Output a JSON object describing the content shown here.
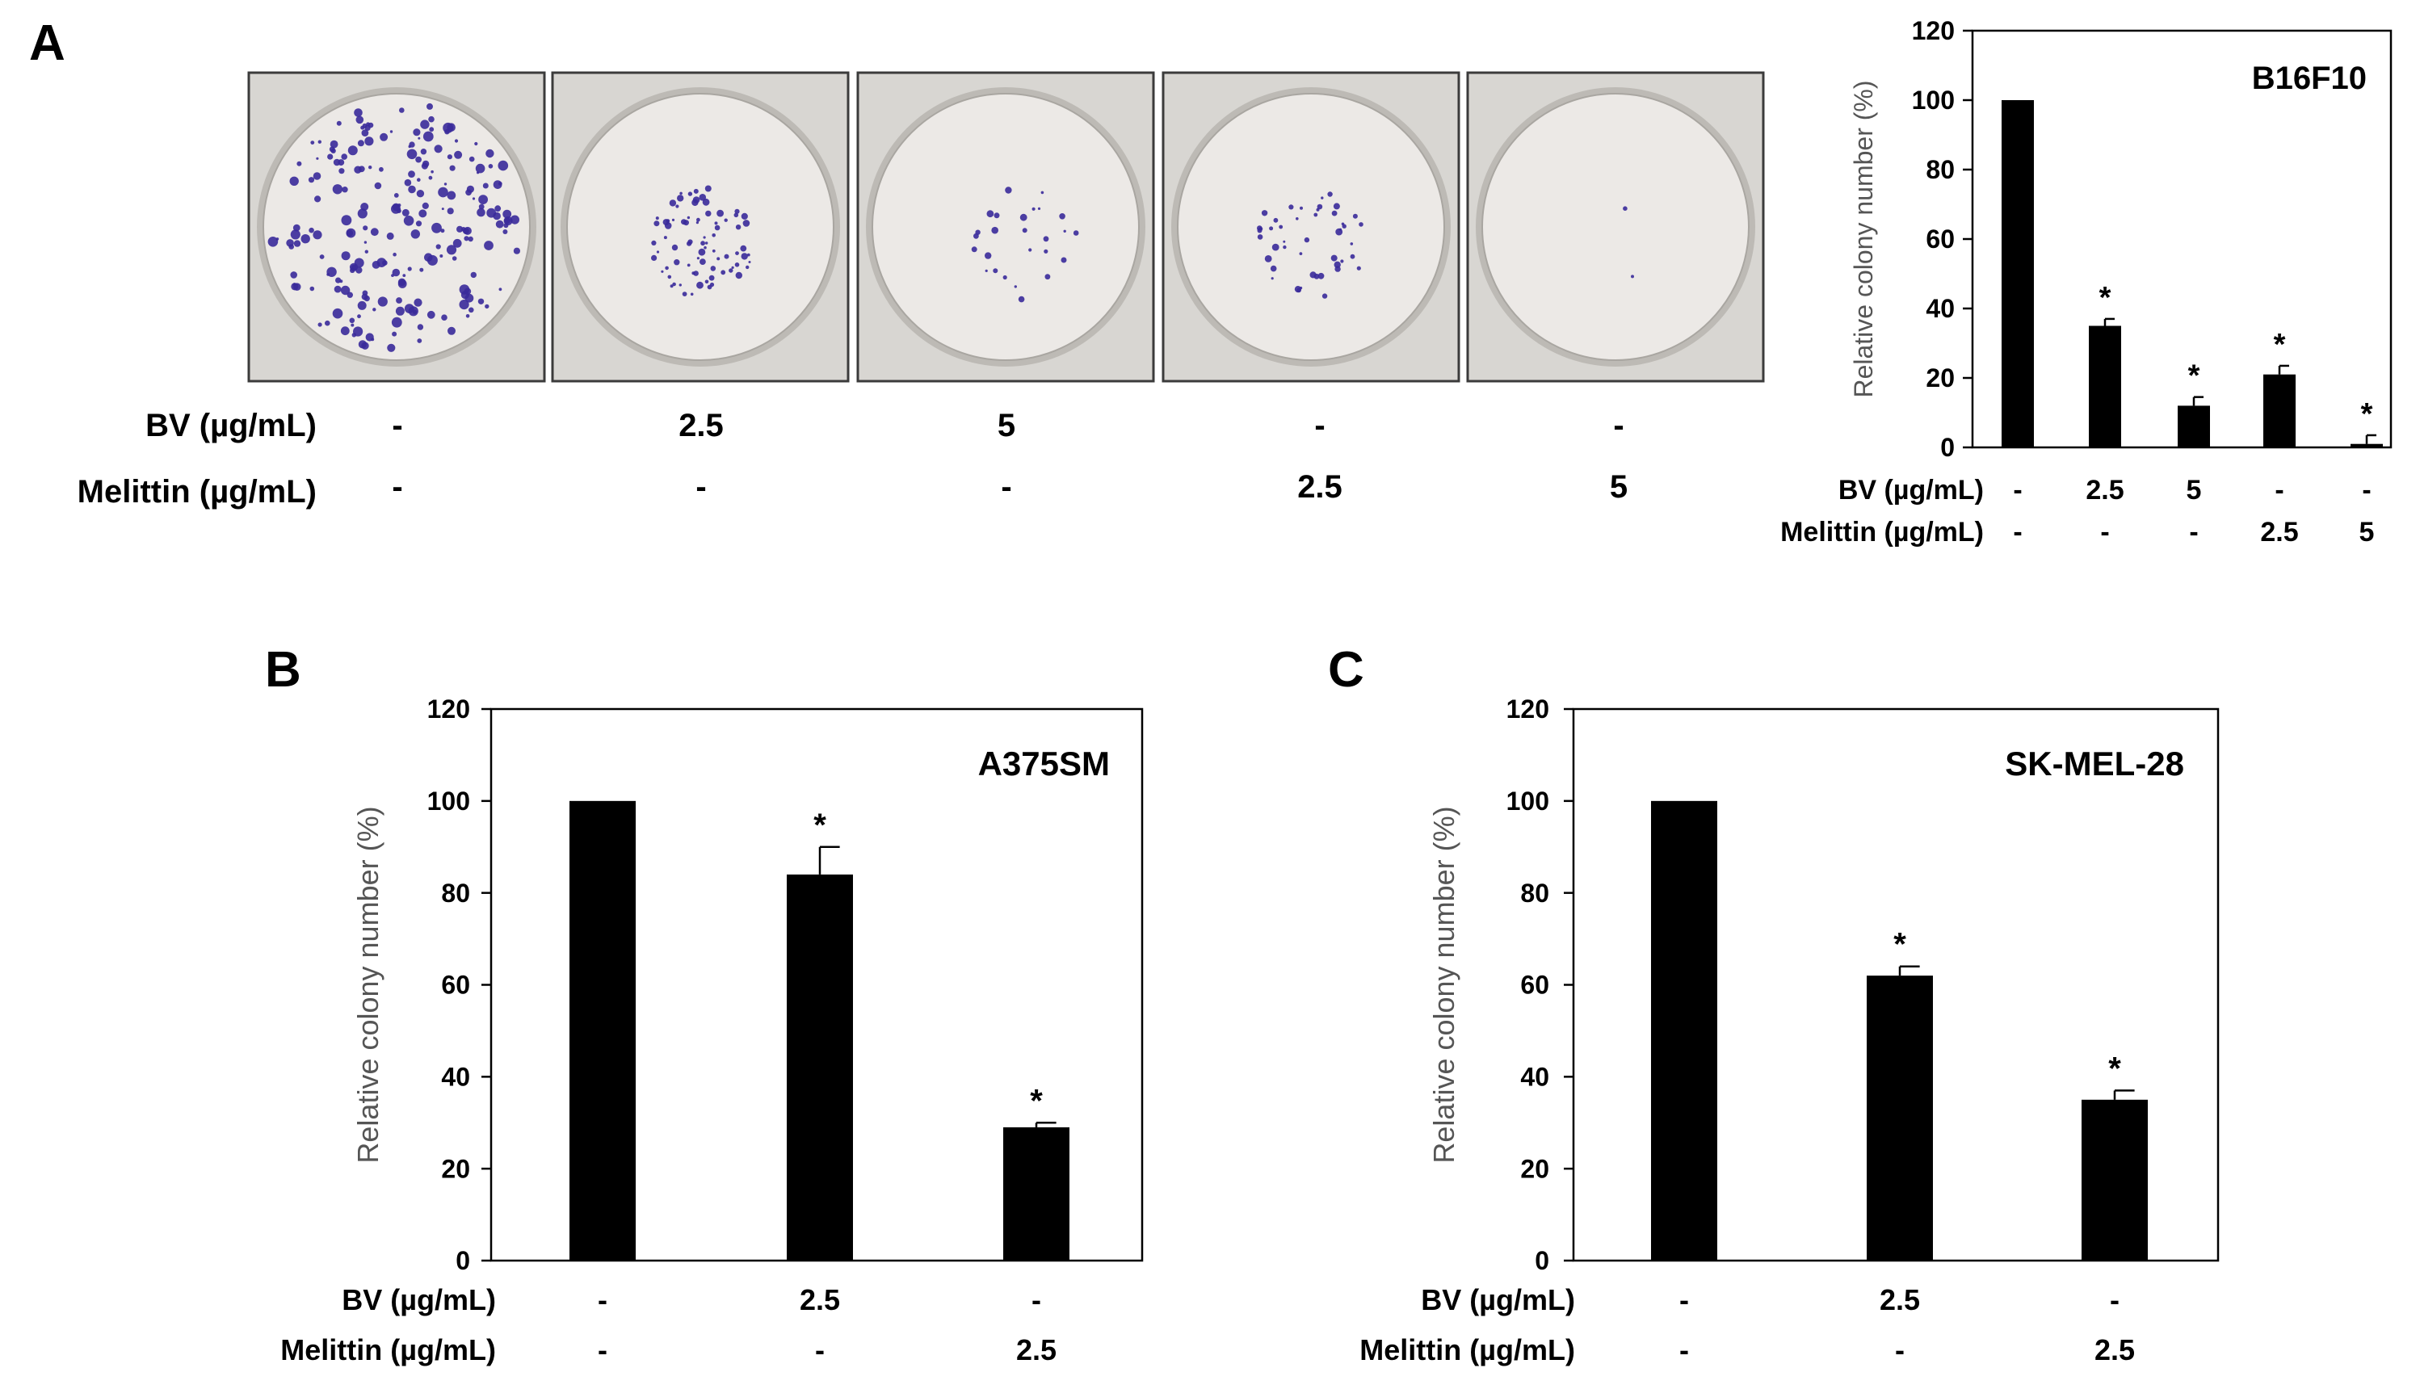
{
  "panels": {
    "A": {
      "letter": "A",
      "row_labels": [
        "BV (µg/mL)",
        "Melittin (µg/mL)"
      ],
      "plate_conditions": [
        {
          "bv": "-",
          "melittin": "-"
        },
        {
          "bv": "2.5",
          "melittin": "-"
        },
        {
          "bv": "5",
          "melittin": "-"
        },
        {
          "bv": "-",
          "melittin": "2.5"
        },
        {
          "bv": "-",
          "melittin": "5"
        }
      ],
      "plate_colony_density": [
        1.0,
        0.36,
        0.12,
        0.21,
        0.01
      ],
      "colors": {
        "colony": "#3a2a9a",
        "plate_bg": "#d8d6d2",
        "well_bg": "#ece9e6",
        "frame": "#3b3b3b"
      }
    },
    "B": {
      "letter": "B"
    },
    "C": {
      "letter": "C"
    }
  },
  "chart_data": [
    {
      "id": "A",
      "type": "bar",
      "inset_label": "B16F10",
      "ylabel": "Relative colony number (%)",
      "ylim": [
        0,
        120
      ],
      "yticks": [
        0,
        20,
        40,
        60,
        80,
        100,
        120
      ],
      "condition_rows": [
        {
          "label": "BV (µg/mL)",
          "values": [
            "-",
            "2.5",
            "5",
            "-",
            "-"
          ]
        },
        {
          "label": "Melittin (µg/mL)",
          "values": [
            "-",
            "-",
            "-",
            "2.5",
            "5"
          ]
        }
      ],
      "values": [
        100,
        35,
        12,
        21,
        1
      ],
      "errors": [
        0,
        2,
        2.5,
        2.5,
        2.5
      ],
      "significance": [
        "",
        "*",
        "*",
        "*",
        "*"
      ],
      "bar_color": "#000000"
    },
    {
      "id": "B",
      "type": "bar",
      "inset_label": "A375SM",
      "ylabel": "Relative colony number (%)",
      "ylim": [
        0,
        120
      ],
      "yticks": [
        0,
        20,
        40,
        60,
        80,
        100,
        120
      ],
      "condition_rows": [
        {
          "label": "BV (µg/mL)",
          "values": [
            "-",
            "2.5",
            "-"
          ]
        },
        {
          "label": "Melittin (µg/mL)",
          "values": [
            "-",
            "-",
            "2.5"
          ]
        }
      ],
      "values": [
        100,
        84,
        29
      ],
      "errors": [
        0,
        6,
        1
      ],
      "significance": [
        "",
        "*",
        "*"
      ],
      "bar_color": "#000000"
    },
    {
      "id": "C",
      "type": "bar",
      "inset_label": "SK-MEL-28",
      "ylabel": "Relative colony number (%)",
      "ylim": [
        0,
        120
      ],
      "yticks": [
        0,
        20,
        40,
        60,
        80,
        100,
        120
      ],
      "condition_rows": [
        {
          "label": "BV (µg/mL)",
          "values": [
            "-",
            "2.5",
            "-"
          ]
        },
        {
          "label": "Melittin (µg/mL)",
          "values": [
            "-",
            "-",
            "2.5"
          ]
        }
      ],
      "values": [
        100,
        62,
        35
      ],
      "errors": [
        0,
        2,
        2
      ],
      "significance": [
        "",
        "*",
        "*"
      ],
      "bar_color": "#000000"
    }
  ]
}
